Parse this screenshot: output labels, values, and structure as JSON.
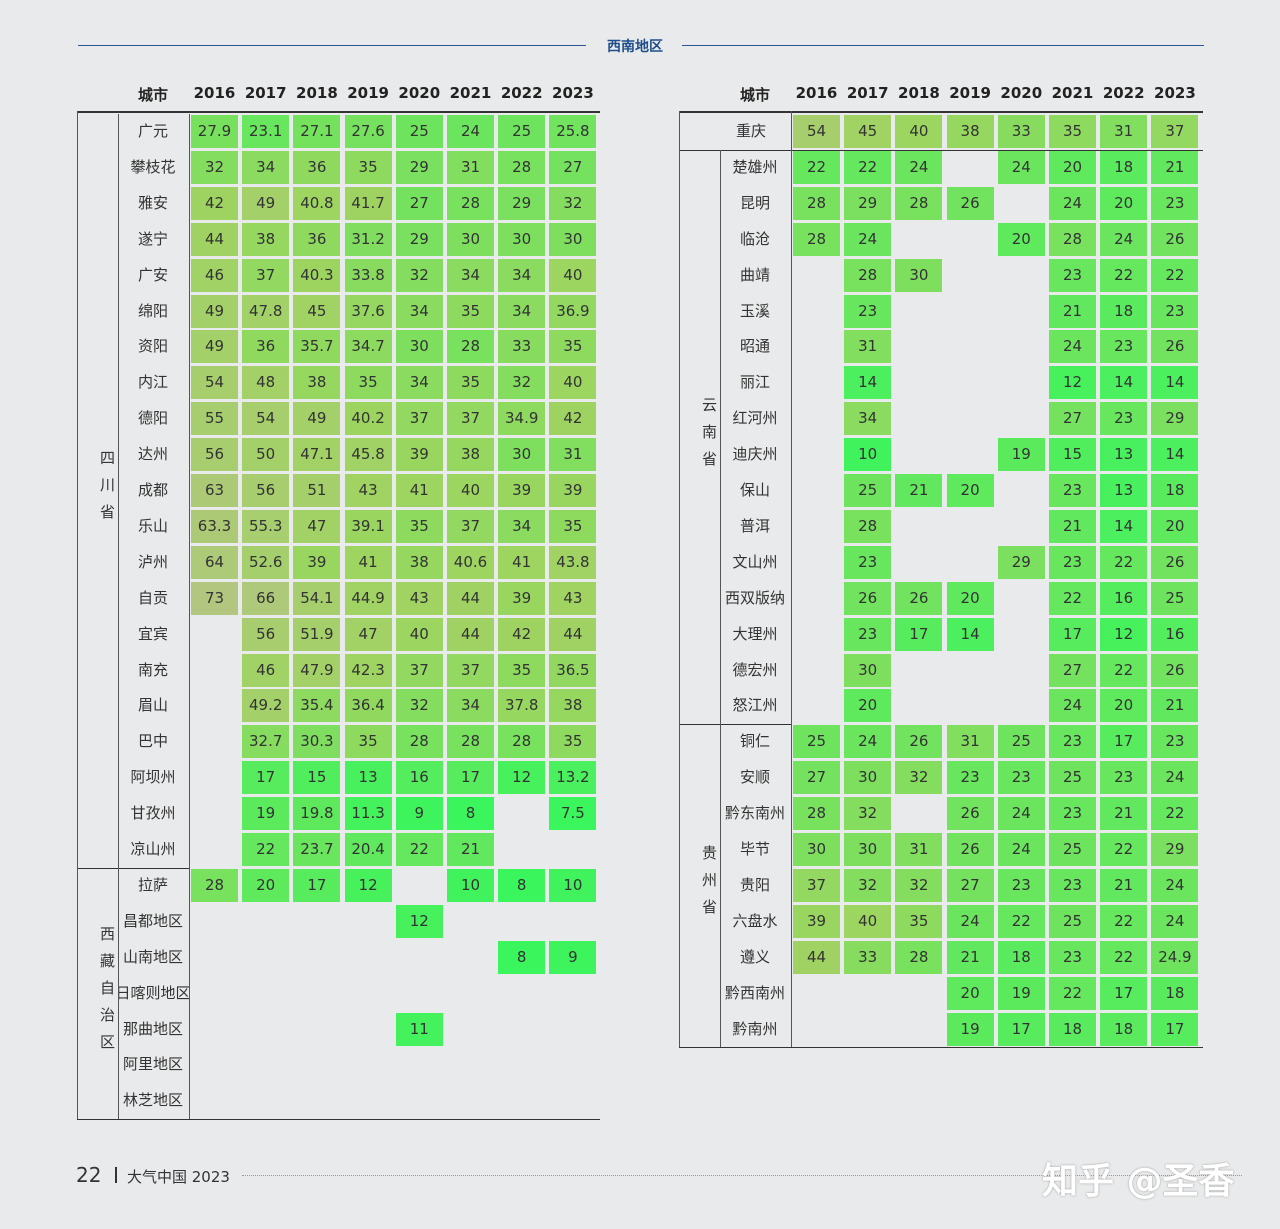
{
  "header": {
    "section_title": "西南地区"
  },
  "years": [
    "2016",
    "2017",
    "2018",
    "2019",
    "2020",
    "2021",
    "2022",
    "2023"
  ],
  "city_col_label": "城市",
  "left": {
    "groups": [
      {
        "province": "四川省",
        "rows": [
          {
            "city": "广元",
            "v": [
              "27.9",
              "23.1",
              "27.1",
              "27.6",
              "25",
              "24",
              "25",
              "25.8"
            ]
          },
          {
            "city": "攀枝花",
            "v": [
              "32",
              "34",
              "36",
              "35",
              "29",
              "31",
              "28",
              "27"
            ]
          },
          {
            "city": "雅安",
            "v": [
              "42",
              "49",
              "40.8",
              "41.7",
              "27",
              "28",
              "29",
              "32"
            ]
          },
          {
            "city": "遂宁",
            "v": [
              "44",
              "38",
              "36",
              "31.2",
              "29",
              "30",
              "30",
              "30"
            ]
          },
          {
            "city": "广安",
            "v": [
              "46",
              "37",
              "40.3",
              "33.8",
              "32",
              "34",
              "34",
              "40"
            ]
          },
          {
            "city": "绵阳",
            "v": [
              "49",
              "47.8",
              "45",
              "37.6",
              "34",
              "35",
              "34",
              "36.9"
            ]
          },
          {
            "city": "资阳",
            "v": [
              "49",
              "36",
              "35.7",
              "34.7",
              "30",
              "28",
              "33",
              "35"
            ]
          },
          {
            "city": "内江",
            "v": [
              "54",
              "48",
              "38",
              "35",
              "34",
              "35",
              "32",
              "40"
            ]
          },
          {
            "city": "德阳",
            "v": [
              "55",
              "54",
              "49",
              "40.2",
              "37",
              "37",
              "34.9",
              "42"
            ]
          },
          {
            "city": "达州",
            "v": [
              "56",
              "50",
              "47.1",
              "45.8",
              "39",
              "38",
              "30",
              "31"
            ]
          },
          {
            "city": "成都",
            "v": [
              "63",
              "56",
              "51",
              "43",
              "41",
              "40",
              "39",
              "39"
            ]
          },
          {
            "city": "乐山",
            "v": [
              "63.3",
              "55.3",
              "47",
              "39.1",
              "35",
              "37",
              "34",
              "35"
            ]
          },
          {
            "city": "泸州",
            "v": [
              "64",
              "52.6",
              "39",
              "41",
              "38",
              "40.6",
              "41",
              "43.8"
            ]
          },
          {
            "city": "自贡",
            "v": [
              "73",
              "66",
              "54.1",
              "44.9",
              "43",
              "44",
              "39",
              "43"
            ]
          },
          {
            "city": "宜宾",
            "v": [
              "",
              "56",
              "51.9",
              "47",
              "40",
              "44",
              "42",
              "44"
            ]
          },
          {
            "city": "南充",
            "v": [
              "",
              "46",
              "47.9",
              "42.3",
              "37",
              "37",
              "35",
              "36.5"
            ]
          },
          {
            "city": "眉山",
            "v": [
              "",
              "49.2",
              "35.4",
              "36.4",
              "32",
              "34",
              "37.8",
              "38"
            ]
          },
          {
            "city": "巴中",
            "v": [
              "",
              "32.7",
              "30.3",
              "35",
              "28",
              "28",
              "28",
              "35"
            ]
          },
          {
            "city": "阿坝州",
            "v": [
              "",
              "17",
              "15",
              "13",
              "16",
              "17",
              "12",
              "13.2"
            ]
          },
          {
            "city": "甘孜州",
            "v": [
              "",
              "19",
              "19.8",
              "11.3",
              "9",
              "8",
              "",
              "7.5"
            ]
          },
          {
            "city": "凉山州",
            "v": [
              "",
              "22",
              "23.7",
              "20.4",
              "22",
              "21",
              "",
              ""
            ]
          }
        ]
      },
      {
        "province": "西藏自治区",
        "rows": [
          {
            "city": "拉萨",
            "v": [
              "28",
              "20",
              "17",
              "12",
              "",
              "10",
              "8",
              "10"
            ]
          },
          {
            "city": "昌都地区",
            "v": [
              "",
              "",
              "",
              "",
              "12",
              "",
              "",
              ""
            ]
          },
          {
            "city": "山南地区",
            "v": [
              "",
              "",
              "",
              "",
              "",
              "",
              "8",
              "9"
            ]
          },
          {
            "city": "日喀则地区",
            "v": [
              "",
              "",
              "",
              "",
              "",
              "",
              "",
              ""
            ]
          },
          {
            "city": "那曲地区",
            "v": [
              "",
              "",
              "",
              "",
              "11",
              "",
              "",
              ""
            ]
          },
          {
            "city": "阿里地区",
            "v": [
              "",
              "",
              "",
              "",
              "",
              "",
              "",
              ""
            ]
          },
          {
            "city": "林芝地区",
            "v": [
              "",
              "",
              "",
              "",
              "",
              "",
              "",
              ""
            ]
          }
        ]
      }
    ]
  },
  "right": {
    "chongqing": {
      "city": "重庆",
      "v": [
        "54",
        "45",
        "40",
        "38",
        "33",
        "35",
        "31",
        "37"
      ]
    },
    "groups": [
      {
        "province": "云南省",
        "rows": [
          {
            "city": "楚雄州",
            "v": [
              "22",
              "22",
              "24",
              "",
              "24",
              "20",
              "18",
              "21"
            ]
          },
          {
            "city": "昆明",
            "v": [
              "28",
              "29",
              "28",
              "26",
              "",
              "24",
              "20",
              "23"
            ]
          },
          {
            "city": "临沧",
            "v": [
              "28",
              "24",
              "",
              "",
              "20",
              "28",
              "24",
              "26"
            ]
          },
          {
            "city": "曲靖",
            "v": [
              "",
              "28",
              "30",
              "",
              "",
              "23",
              "22",
              "22"
            ]
          },
          {
            "city": "玉溪",
            "v": [
              "",
              "23",
              "",
              "",
              "",
              "21",
              "18",
              "23"
            ]
          },
          {
            "city": "昭通",
            "v": [
              "",
              "31",
              "",
              "",
              "",
              "24",
              "23",
              "26"
            ]
          },
          {
            "city": "丽江",
            "v": [
              "",
              "14",
              "",
              "",
              "",
              "12",
              "14",
              "14"
            ]
          },
          {
            "city": "红河州",
            "v": [
              "",
              "34",
              "",
              "",
              "",
              "27",
              "23",
              "29"
            ]
          },
          {
            "city": "迪庆州",
            "v": [
              "",
              "10",
              "",
              "",
              "19",
              "15",
              "13",
              "14"
            ]
          },
          {
            "city": "保山",
            "v": [
              "",
              "25",
              "21",
              "20",
              "",
              "23",
              "13",
              "18"
            ]
          },
          {
            "city": "普洱",
            "v": [
              "",
              "28",
              "",
              "",
              "",
              "21",
              "14",
              "20"
            ]
          },
          {
            "city": "文山州",
            "v": [
              "",
              "23",
              "",
              "",
              "29",
              "23",
              "22",
              "26"
            ]
          },
          {
            "city": "西双版纳",
            "v": [
              "",
              "26",
              "26",
              "20",
              "",
              "22",
              "16",
              "25"
            ]
          },
          {
            "city": "大理州",
            "v": [
              "",
              "23",
              "17",
              "14",
              "",
              "17",
              "12",
              "16"
            ]
          },
          {
            "city": "德宏州",
            "v": [
              "",
              "30",
              "",
              "",
              "",
              "27",
              "22",
              "26"
            ]
          },
          {
            "city": "怒江州",
            "v": [
              "",
              "20",
              "",
              "",
              "",
              "24",
              "20",
              "21"
            ]
          }
        ]
      },
      {
        "province": "贵州省",
        "rows": [
          {
            "city": "铜仁",
            "v": [
              "25",
              "24",
              "26",
              "31",
              "25",
              "23",
              "17",
              "23"
            ]
          },
          {
            "city": "安顺",
            "v": [
              "27",
              "30",
              "32",
              "23",
              "23",
              "25",
              "23",
              "24"
            ]
          },
          {
            "city": "黔东南州",
            "v": [
              "28",
              "32",
              "",
              "26",
              "24",
              "23",
              "21",
              "22"
            ]
          },
          {
            "city": "毕节",
            "v": [
              "30",
              "30",
              "31",
              "26",
              "24",
              "25",
              "22",
              "29"
            ]
          },
          {
            "city": "贵阳",
            "v": [
              "37",
              "32",
              "32",
              "27",
              "23",
              "23",
              "21",
              "24"
            ]
          },
          {
            "city": "六盘水",
            "v": [
              "39",
              "40",
              "35",
              "24",
              "22",
              "25",
              "22",
              "24"
            ]
          },
          {
            "city": "遵义",
            "v": [
              "44",
              "33",
              "28",
              "21",
              "18",
              "23",
              "22",
              "24.9"
            ]
          },
          {
            "city": "黔西南州",
            "v": [
              "",
              "",
              "",
              "20",
              "19",
              "22",
              "17",
              "18"
            ]
          },
          {
            "city": "黔南州",
            "v": [
              "",
              "",
              "",
              "19",
              "17",
              "18",
              "18",
              "17"
            ]
          }
        ]
      }
    ]
  },
  "footer": {
    "page_number": "22",
    "publication": "大气中国 2023"
  },
  "watermark": "知乎 @圣香"
}
